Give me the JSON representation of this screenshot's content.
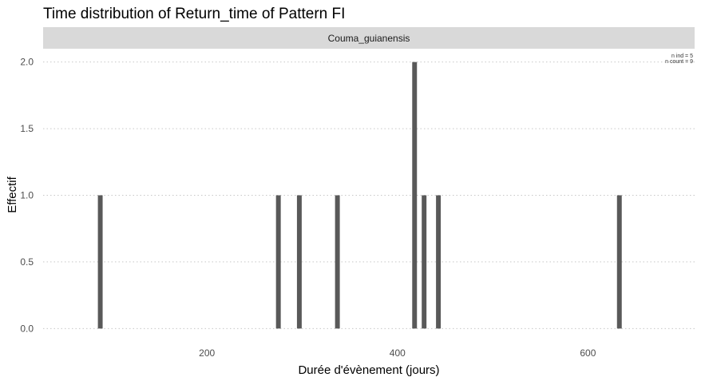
{
  "chart_data": {
    "type": "bar",
    "title": "Time distribution of Return_time of Pattern FI",
    "facet_label": "Couma_guianensis",
    "xlabel": "Durée d'évènement (jours)",
    "ylabel": "Effectif",
    "xlim": [
      28,
      712
    ],
    "ylim": [
      -0.1,
      2.1
    ],
    "x_ticks": [
      200,
      400,
      600
    ],
    "y_ticks": [
      0.0,
      0.5,
      1.0,
      1.5,
      2.0
    ],
    "y_tick_labels": [
      "0.0",
      "0.5",
      "1.0",
      "1.5",
      "2.0"
    ],
    "bar_width_days": 5,
    "bars": [
      {
        "x": 88,
        "count": 1
      },
      {
        "x": 275,
        "count": 1
      },
      {
        "x": 297,
        "count": 1
      },
      {
        "x": 337,
        "count": 1
      },
      {
        "x": 418,
        "count": 2
      },
      {
        "x": 428,
        "count": 1
      },
      {
        "x": 443,
        "count": 1
      },
      {
        "x": 633,
        "count": 1
      }
    ],
    "annotations": [
      "n ind =  5",
      "n count =  9"
    ],
    "grid": "horizontal dotted",
    "legend": "none",
    "colors": {
      "bar": "#595959",
      "strip": "#d9d9d9",
      "background": "#ffffff"
    }
  }
}
